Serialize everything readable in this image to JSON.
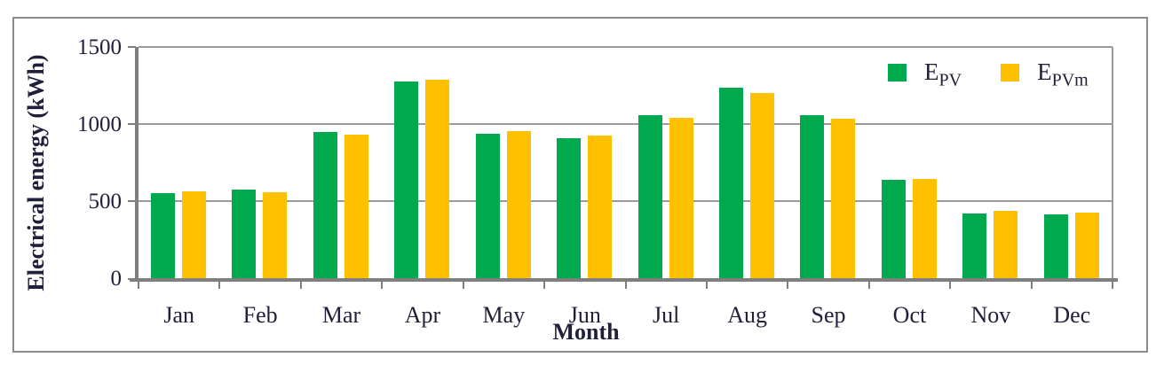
{
  "chart_data": {
    "type": "bar",
    "title": "",
    "xlabel": "Month",
    "ylabel": "Electrical energy (kWh)",
    "categories": [
      "Jan",
      "Feb",
      "Mar",
      "Apr",
      "May",
      "Jun",
      "Jul",
      "Aug",
      "Sep",
      "Oct",
      "Nov",
      "Dec"
    ],
    "series": [
      {
        "name": "E_PV",
        "legend_base": "E",
        "legend_sub": "PV",
        "color": "#00A94E",
        "values": [
          550,
          575,
          948,
          1275,
          937,
          910,
          1056,
          1235,
          1058,
          638,
          420,
          412
        ]
      },
      {
        "name": "E_PVm",
        "legend_base": "E",
        "legend_sub": "PVm",
        "color": "#FFC000",
        "values": [
          562,
          557,
          930,
          1287,
          953,
          925,
          1040,
          1200,
          1035,
          645,
          436,
          425
        ]
      }
    ],
    "ylim": [
      0,
      1500
    ],
    "yticks": [
      0,
      500,
      1000,
      1500
    ],
    "grid": true,
    "legend_position": "top-right"
  },
  "colors": {
    "axis": "#7f7f7f",
    "gridline": "#9b9b9b",
    "frame": "#8c8c8c",
    "text": "#20203a"
  }
}
